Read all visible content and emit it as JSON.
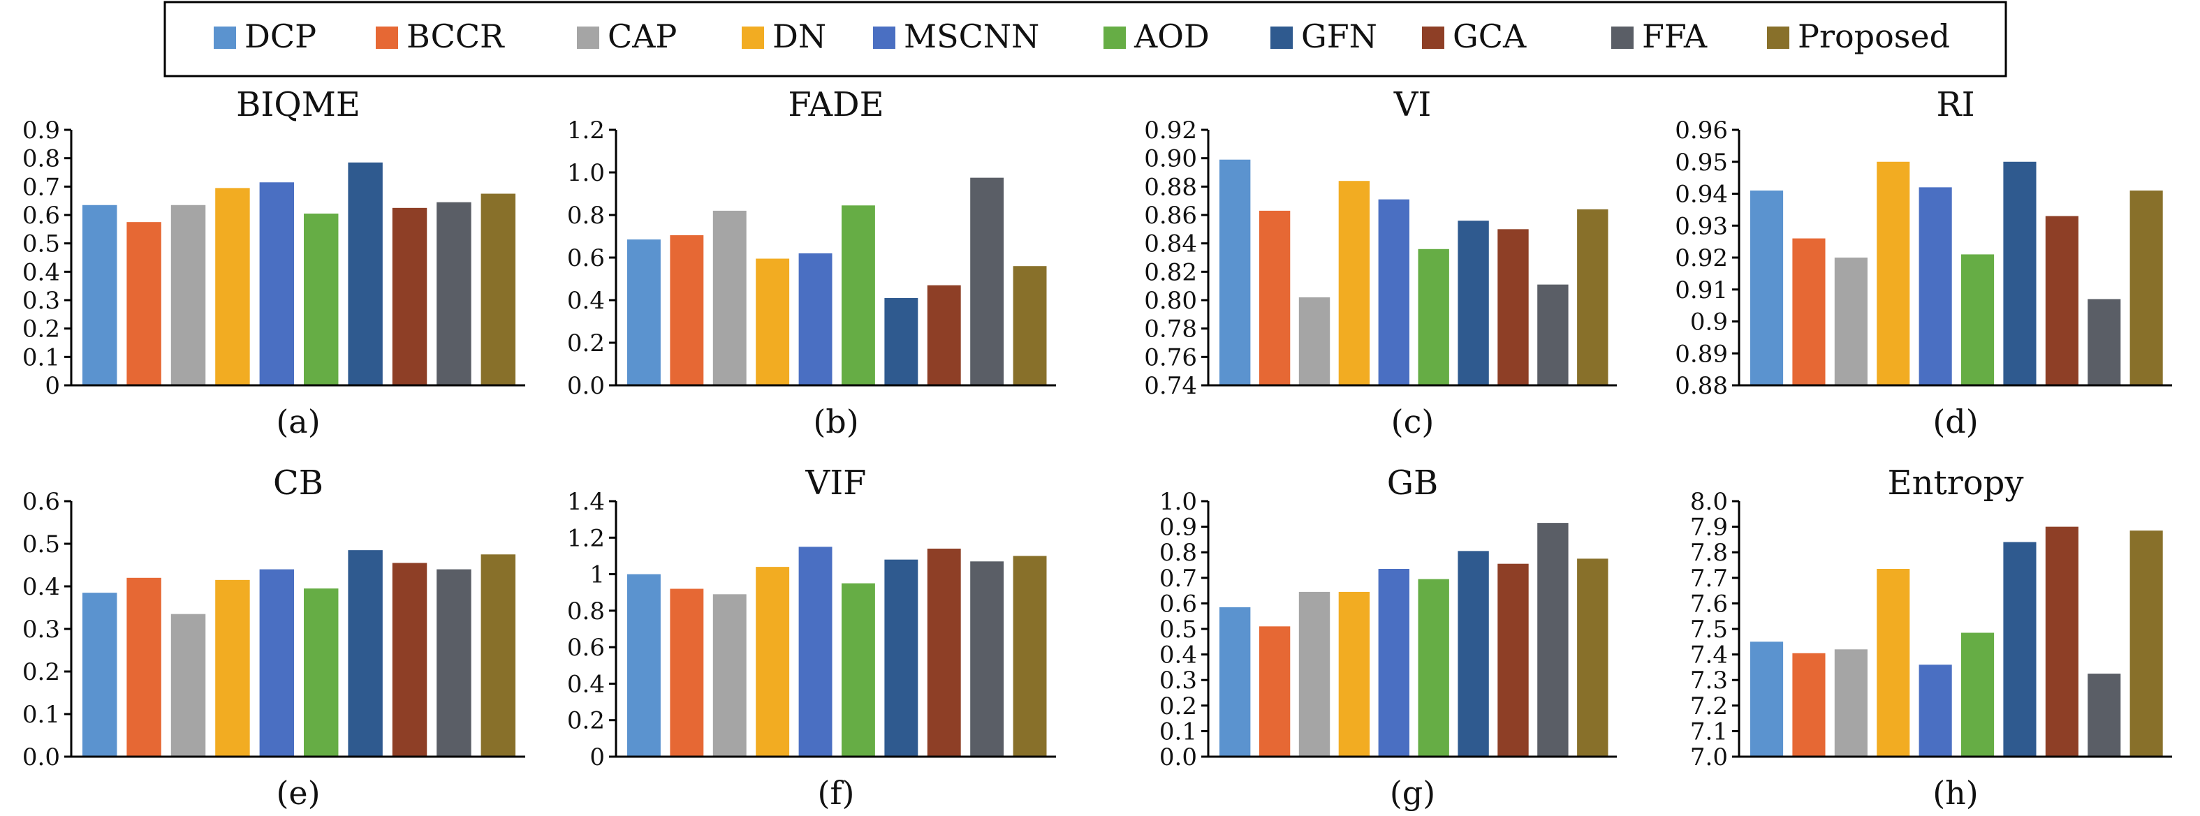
{
  "legend": {
    "entries": [
      {
        "label": "DCP",
        "color": "#5b93cf"
      },
      {
        "label": "BCCR",
        "color": "#e66834"
      },
      {
        "label": "CAP",
        "color": "#a5a5a5"
      },
      {
        "label": "DN",
        "color": "#f2ac22"
      },
      {
        "label": "MSCNN",
        "color": "#4a6fc2"
      },
      {
        "label": "AOD",
        "color": "#66ad45"
      },
      {
        "label": "GFN",
        "color": "#2f5a8f"
      },
      {
        "label": "GCA",
        "color": "#8e3f26"
      },
      {
        "label": "FFA",
        "color": "#5a5e66"
      },
      {
        "label": "Proposed",
        "color": "#88702a"
      }
    ]
  },
  "chart_data": [
    {
      "type": "bar",
      "title": "BIQME",
      "caption": "(a)",
      "categories": [
        "DCP",
        "BCCR",
        "CAP",
        "DN",
        "MSCNN",
        "AOD",
        "GFN",
        "GCA",
        "FFA",
        "Proposed"
      ],
      "values": [
        0.635,
        0.575,
        0.635,
        0.695,
        0.715,
        0.605,
        0.785,
        0.625,
        0.645,
        0.675
      ],
      "ylim": [
        0,
        0.9
      ],
      "yticks": [
        "0",
        "0.1",
        "0.2",
        "0.3",
        "0.4",
        "0.5",
        "0.6",
        "0.7",
        "0.8",
        "0.9"
      ]
    },
    {
      "type": "bar",
      "title": "FADE",
      "caption": "(b)",
      "categories": [
        "DCP",
        "BCCR",
        "CAP",
        "DN",
        "MSCNN",
        "AOD",
        "GFN",
        "GCA",
        "FFA",
        "Proposed"
      ],
      "values": [
        0.685,
        0.705,
        0.82,
        0.595,
        0.62,
        0.845,
        0.41,
        0.47,
        0.975,
        0.56
      ],
      "ylim": [
        0,
        1.2
      ],
      "yticks": [
        "0.0",
        "0.2",
        "0.4",
        "0.6",
        "0.8",
        "1.0",
        "1.2"
      ]
    },
    {
      "type": "bar",
      "title": "VI",
      "caption": "(c)",
      "categories": [
        "DCP",
        "BCCR",
        "CAP",
        "DN",
        "MSCNN",
        "AOD",
        "GFN",
        "GCA",
        "FFA",
        "Proposed"
      ],
      "values": [
        0.899,
        0.863,
        0.802,
        0.884,
        0.871,
        0.836,
        0.856,
        0.85,
        0.811,
        0.864
      ],
      "ylim": [
        0.74,
        0.92
      ],
      "yticks": [
        "0.74",
        "0.76",
        "0.78",
        "0.80",
        "0.82",
        "0.84",
        "0.86",
        "0.88",
        "0.90",
        "0.92"
      ]
    },
    {
      "type": "bar",
      "title": "RI",
      "caption": "(d)",
      "categories": [
        "DCP",
        "BCCR",
        "CAP",
        "DN",
        "MSCNN",
        "AOD",
        "GFN",
        "GCA",
        "FFA",
        "Proposed"
      ],
      "values": [
        0.941,
        0.926,
        0.92,
        0.95,
        0.942,
        0.921,
        0.95,
        0.933,
        0.907,
        0.941
      ],
      "ylim": [
        0.88,
        0.96
      ],
      "yticks": [
        "0.88",
        "0.89",
        "0.9",
        "0.91",
        "0.92",
        "0.93",
        "0.94",
        "0.95",
        "0.96"
      ]
    },
    {
      "type": "bar",
      "title": "CB",
      "caption": "(e)",
      "categories": [
        "DCP",
        "BCCR",
        "CAP",
        "DN",
        "MSCNN",
        "AOD",
        "GFN",
        "GCA",
        "FFA",
        "Proposed"
      ],
      "values": [
        0.385,
        0.42,
        0.335,
        0.415,
        0.44,
        0.395,
        0.485,
        0.455,
        0.44,
        0.475
      ],
      "ylim": [
        0,
        0.6
      ],
      "yticks": [
        "0.0",
        "0.1",
        "0.2",
        "0.3",
        "0.4",
        "0.5",
        "0.6"
      ]
    },
    {
      "type": "bar",
      "title": "VIF",
      "caption": "(f)",
      "categories": [
        "DCP",
        "BCCR",
        "CAP",
        "DN",
        "MSCNN",
        "AOD",
        "GFN",
        "GCA",
        "FFA",
        "Proposed"
      ],
      "values": [
        1.0,
        0.92,
        0.89,
        1.04,
        1.15,
        0.95,
        1.08,
        1.14,
        1.07,
        1.1
      ],
      "ylim": [
        0,
        1.4
      ],
      "yticks": [
        "0",
        "0.2",
        "0.4",
        "0.6",
        "0.8",
        "1",
        "1.2",
        "1.4"
      ]
    },
    {
      "type": "bar",
      "title": "GB",
      "caption": "(g)",
      "categories": [
        "DCP",
        "BCCR",
        "CAP",
        "DN",
        "MSCNN",
        "AOD",
        "GFN",
        "GCA",
        "FFA",
        "Proposed"
      ],
      "values": [
        0.585,
        0.51,
        0.645,
        0.645,
        0.735,
        0.695,
        0.805,
        0.755,
        0.915,
        0.775
      ],
      "ylim": [
        0,
        1.0
      ],
      "yticks": [
        "0.0",
        "0.1",
        "0.2",
        "0.3",
        "0.4",
        "0.5",
        "0.6",
        "0.7",
        "0.8",
        "0.9",
        "1.0"
      ]
    },
    {
      "type": "bar",
      "title": "Entropy",
      "caption": "(h)",
      "categories": [
        "DCP",
        "BCCR",
        "CAP",
        "DN",
        "MSCNN",
        "AOD",
        "GFN",
        "GCA",
        "FFA",
        "Proposed"
      ],
      "values": [
        7.45,
        7.405,
        7.42,
        7.735,
        7.36,
        7.485,
        7.84,
        7.9,
        7.325,
        7.885
      ],
      "ylim": [
        7.0,
        8.0
      ],
      "yticks": [
        "7.0",
        "7.1",
        "7.2",
        "7.3",
        "7.4",
        "7.5",
        "7.6",
        "7.7",
        "7.8",
        "7.9",
        "8.0"
      ]
    }
  ]
}
